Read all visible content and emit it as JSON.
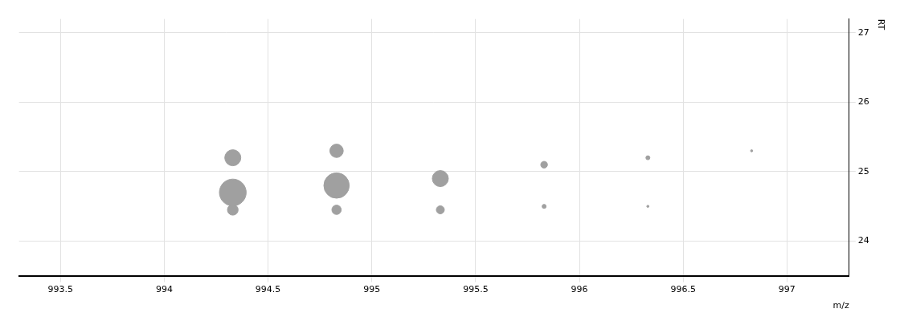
{
  "chart_data": {
    "type": "bubble",
    "x_label": "m/z",
    "y_label": "RT",
    "x": [
      994.33,
      994.33,
      994.33,
      994.83,
      994.83,
      994.83,
      995.33,
      995.33,
      995.83,
      995.83,
      996.33,
      996.33,
      996.83
    ],
    "y": [
      24.45,
      24.7,
      25.2,
      24.45,
      24.8,
      25.3,
      24.45,
      24.9,
      24.5,
      25.1,
      24.5,
      25.2,
      25.3
    ],
    "sizes": [
      40,
      100,
      60,
      35,
      95,
      50,
      30,
      60,
      15,
      25,
      8,
      15,
      8
    ],
    "color": "#a0a0a0",
    "xlim": [
      993.3,
      997.3
    ],
    "xticks": [
      993.5,
      994,
      994.5,
      995,
      995.5,
      996,
      996.5,
      997
    ],
    "ylim": [
      23.5,
      27.2
    ],
    "yticks": [
      24,
      25,
      26,
      27
    ],
    "grid": true
  }
}
